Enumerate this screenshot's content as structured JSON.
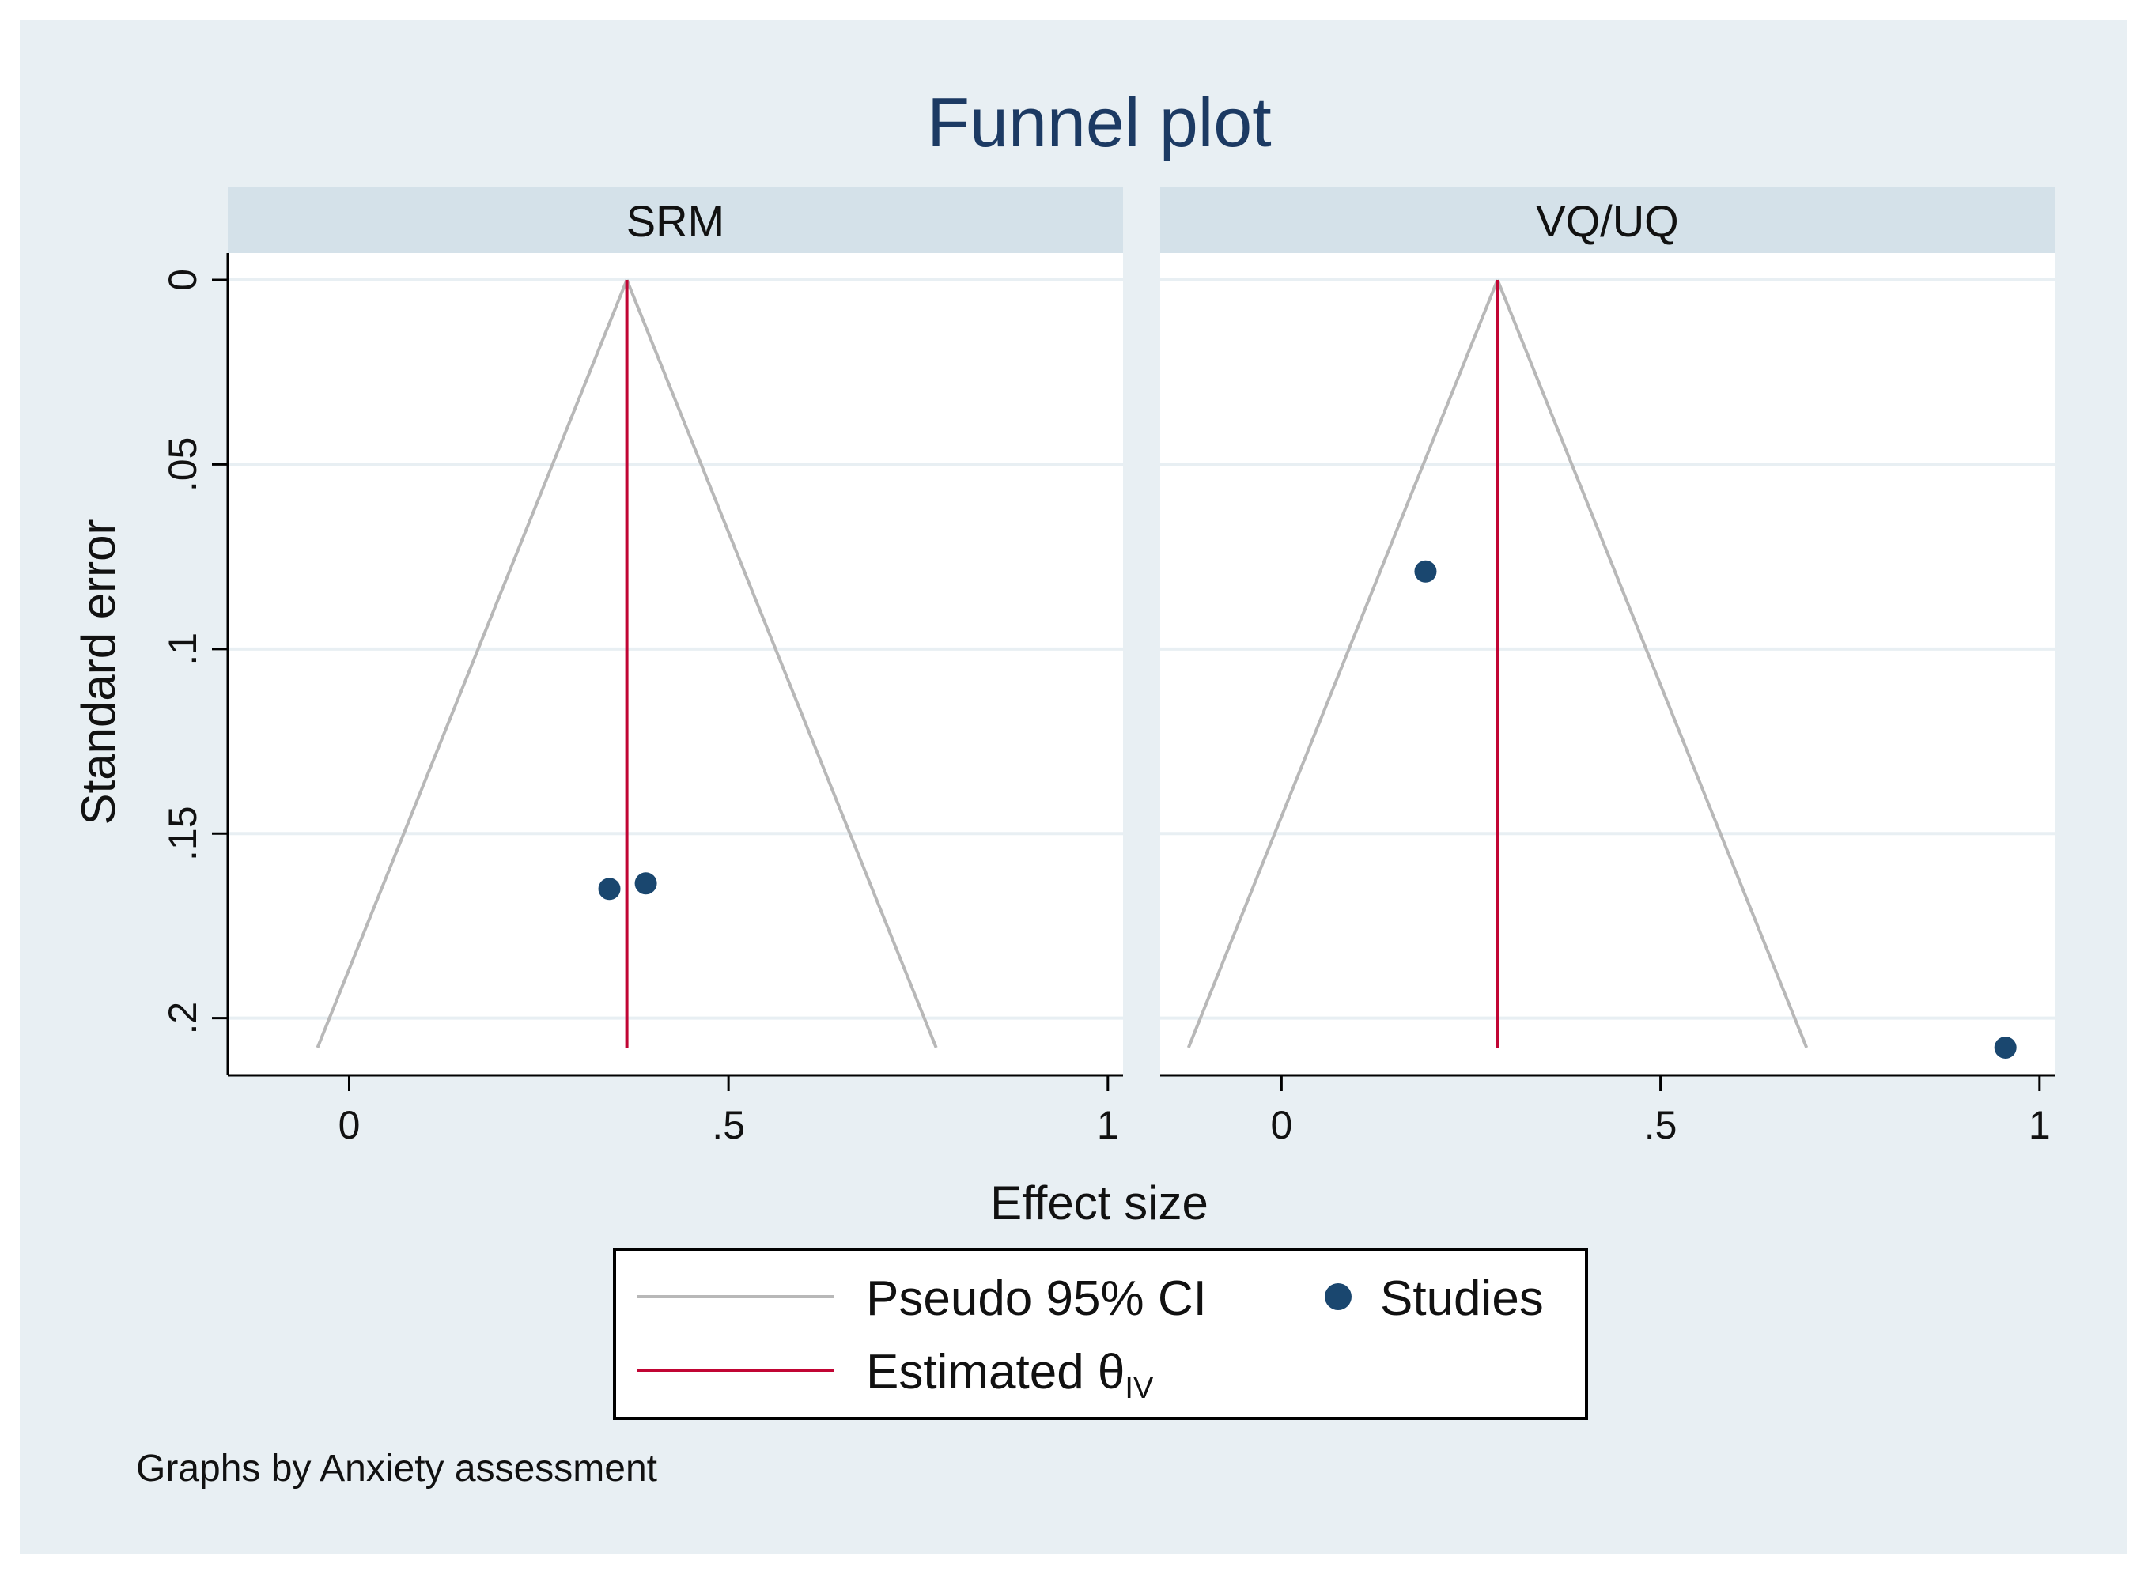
{
  "chart_data": {
    "type": "scatter",
    "subtype": "funnel",
    "title": "Funnel plot",
    "xlabel": "Effect size",
    "ylabel": "Standard error",
    "note": "Graphs by Anxiety assessment",
    "xlim": [
      -0.16,
      1.02
    ],
    "ylim": [
      0,
      0.208
    ],
    "y_reversed": true,
    "x_ticks": [
      {
        "value": 0,
        "label": "0"
      },
      {
        "value": 0.5,
        "label": ".5"
      },
      {
        "value": 1,
        "label": "1"
      }
    ],
    "y_ticks": [
      {
        "value": 0,
        "label": "0"
      },
      {
        "value": 0.05,
        "label": ".05"
      },
      {
        "value": 0.1,
        "label": ".1"
      },
      {
        "value": 0.15,
        "label": ".15"
      },
      {
        "value": 0.2,
        "label": ".2"
      }
    ],
    "grid": true,
    "colors": {
      "outer_bg": "#e8eff3",
      "plot_bg": "#ffffff",
      "strip_bg": "#d4e1e9",
      "title": "#1c3a63",
      "studies": "#1a476f",
      "estimate": "#c10534",
      "ci": "#b8b8b8",
      "grid": "#e8eff3"
    },
    "panels": [
      {
        "name": "SRM",
        "estimate": 0.366,
        "ci_se_max": 0.208,
        "studies": [
          {
            "x": 0.343,
            "y": 0.165
          },
          {
            "x": 0.391,
            "y": 0.1635
          }
        ]
      },
      {
        "name": "VQ/UQ",
        "estimate": 0.285,
        "ci_se_max": 0.208,
        "studies": [
          {
            "x": 0.19,
            "y": 0.079
          },
          {
            "x": 0.955,
            "y": 0.208
          }
        ]
      }
    ],
    "legend": {
      "position": "bottom",
      "items": [
        {
          "key": "ci",
          "label": "Pseudo 95% CI"
        },
        {
          "key": "studies",
          "label": "Studies"
        },
        {
          "key": "estimate",
          "label_main": "Estimated θ",
          "label_sub": "IV"
        }
      ]
    }
  }
}
